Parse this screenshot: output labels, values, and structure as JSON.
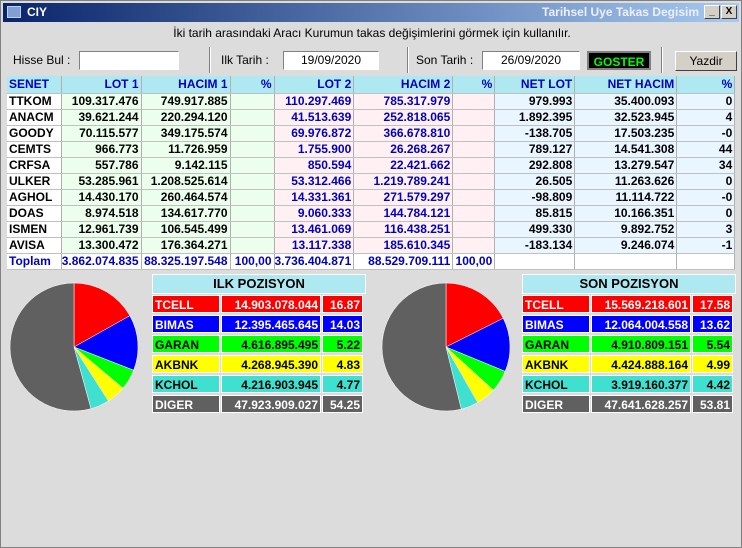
{
  "window": {
    "title_left": "CIY",
    "title_right": "Tarihsel Uye Takas Degisim",
    "minimize_label": "_",
    "close_label": "X"
  },
  "hint": "İki tarih arasındaki  Aracı Kurumun takas değişimlerini görmek için kullanılır.",
  "filters": {
    "search_label": "Hisse Bul :",
    "search_value": "",
    "start_label": "Ilk Tarih :",
    "start_date": "19/09/2020",
    "end_label": "Son Tarih :",
    "end_date": "26/09/2020",
    "go_label": "GOSTER",
    "print_label": "Yazdir"
  },
  "table": {
    "headers": [
      "SENET",
      "LOT 1",
      "HACIM 1",
      "%",
      "LOT 2",
      "HACIM 2",
      "%",
      "NET LOT",
      "NET HACIM",
      "%"
    ],
    "rows": [
      [
        "TTKOM",
        "109.317.476",
        "749.917.885",
        "",
        "110.297.469",
        "785.317.979",
        "",
        "979.993",
        "35.400.093",
        "0"
      ],
      [
        "ANACM",
        "39.621.244",
        "220.294.120",
        "",
        "41.513.639",
        "252.818.065",
        "",
        "1.892.395",
        "32.523.945",
        "4"
      ],
      [
        "GOODY",
        "70.115.577",
        "349.175.574",
        "",
        "69.976.872",
        "366.678.810",
        "",
        "-138.705",
        "17.503.235",
        "-0"
      ],
      [
        "CEMTS",
        "966.773",
        "11.726.959",
        "",
        "1.755.900",
        "26.268.267",
        "",
        "789.127",
        "14.541.308",
        "44"
      ],
      [
        "CRFSA",
        "557.786",
        "9.142.115",
        "",
        "850.594",
        "22.421.662",
        "",
        "292.808",
        "13.279.547",
        "34"
      ],
      [
        "ULKER",
        "53.285.961",
        "1.208.525.614",
        "",
        "53.312.466",
        "1.219.789.241",
        "",
        "26.505",
        "11.263.626",
        "0"
      ],
      [
        "AGHOL",
        "14.430.170",
        "260.464.574",
        "",
        "14.331.361",
        "271.579.297",
        "",
        "-98.809",
        "11.114.722",
        "-0"
      ],
      [
        "DOAS",
        "8.974.518",
        "134.617.770",
        "",
        "9.060.333",
        "144.784.121",
        "",
        "85.815",
        "10.166.351",
        "0"
      ],
      [
        "ISMEN",
        "12.961.739",
        "106.545.499",
        "",
        "13.461.069",
        "116.438.251",
        "",
        "499.330",
        "9.892.752",
        "3"
      ],
      [
        "AVISA",
        "13.300.472",
        "176.364.271",
        "",
        "13.117.338",
        "185.610.345",
        "",
        "-183.134",
        "9.246.074",
        "-1"
      ]
    ],
    "total": [
      "Toplam",
      "3.862.074.835",
      "88.325.197.548",
      "100,00",
      "3.736.404.871",
      "88.529.709.111",
      "100,00",
      "",
      "",
      ""
    ]
  },
  "first_position": {
    "title": "ILK POZISYON",
    "items": [
      {
        "name": "TCELL",
        "value": "14.903.078.044",
        "pct": "16.87",
        "bg": "#ff0000",
        "fg": "#ffffff"
      },
      {
        "name": "BIMAS",
        "value": "12.395.465.645",
        "pct": "14.03",
        "bg": "#0000ff",
        "fg": "#ffffff"
      },
      {
        "name": "GARAN",
        "value": "4.616.895.495",
        "pct": "5.22",
        "bg": "#00ff00",
        "fg": "#000000"
      },
      {
        "name": "AKBNK",
        "value": "4.268.945.390",
        "pct": "4.83",
        "bg": "#ffff00",
        "fg": "#000000"
      },
      {
        "name": "KCHOL",
        "value": "4.216.903.945",
        "pct": "4.77",
        "bg": "#40e0d0",
        "fg": "#000000"
      },
      {
        "name": "DIGER",
        "value": "47.923.909.027",
        "pct": "54.25",
        "bg": "#606060",
        "fg": "#ffffff"
      }
    ]
  },
  "last_position": {
    "title": "SON POZISYON",
    "items": [
      {
        "name": "TCELL",
        "value": "15.569.218.601",
        "pct": "17.58",
        "bg": "#ff0000",
        "fg": "#ffffff"
      },
      {
        "name": "BIMAS",
        "value": "12.064.004.558",
        "pct": "13.62",
        "bg": "#0000ff",
        "fg": "#ffffff"
      },
      {
        "name": "GARAN",
        "value": "4.910.809.151",
        "pct": "5.54",
        "bg": "#00ff00",
        "fg": "#000000"
      },
      {
        "name": "AKBNK",
        "value": "4.424.888.164",
        "pct": "4.99",
        "bg": "#ffff00",
        "fg": "#000000"
      },
      {
        "name": "KCHOL",
        "value": "3.919.160.377",
        "pct": "4.42",
        "bg": "#40e0d0",
        "fg": "#000000"
      },
      {
        "name": "DIGER",
        "value": "47.641.628.257",
        "pct": "53.81",
        "bg": "#606060",
        "fg": "#ffffff"
      }
    ]
  }
}
